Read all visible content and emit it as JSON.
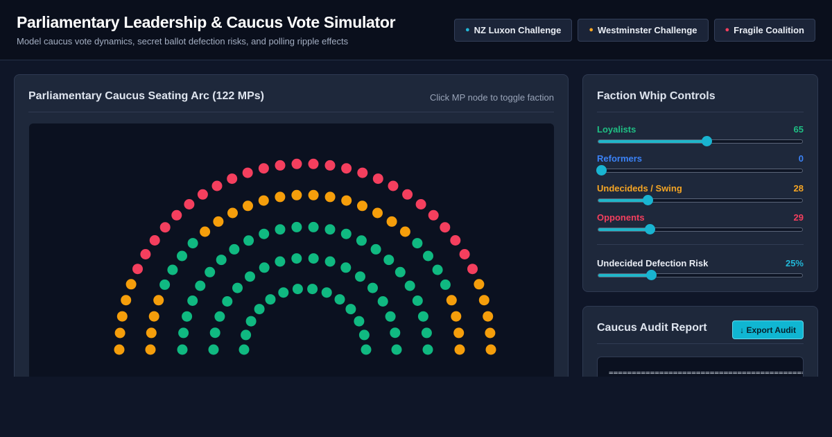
{
  "header": {
    "title": "Parliamentary Leadership & Caucus Vote Simulator",
    "subtitle": "Model caucus vote dynamics, secret ballot defection risks, and polling ripple effects",
    "presets": [
      {
        "label": "NZ Luxon Challenge",
        "dot": "●",
        "color": "#22b8d8"
      },
      {
        "label": "Westminster Challenge",
        "dot": "●",
        "color": "#f5a524"
      },
      {
        "label": "Fragile Coalition",
        "dot": "●",
        "color": "#f43f5e"
      }
    ]
  },
  "arc_panel": {
    "title": "Parliamentary Caucus Seating Arc (122 MPs)",
    "hint": "Click MP node to toggle faction"
  },
  "whip": {
    "title": "Faction Whip Controls",
    "factions": [
      {
        "label": "Loyalists",
        "value": "65",
        "color": "#1fbf84",
        "fraction": 0.53
      },
      {
        "label": "Reformers",
        "value": "0",
        "color": "#3b82f6",
        "fraction": 0.0
      },
      {
        "label": "Undecideds / Swing",
        "value": "28",
        "color": "#f5a524",
        "fraction": 0.23
      },
      {
        "label": "Opponents",
        "value": "29",
        "color": "#f43f5e",
        "fraction": 0.24
      }
    ],
    "defection": {
      "label": "Undecided Defection Risk",
      "value": "25%",
      "color": "#22b8d8",
      "fraction": 0.25
    }
  },
  "audit": {
    "title": "Caucus Audit Report",
    "export_label": "↓ Export Audit",
    "preview_line": "================================================"
  },
  "seating_colors": {
    "loyalist": "#10b981",
    "swing": "#f59e0b",
    "opponent": "#f43f5e"
  }
}
